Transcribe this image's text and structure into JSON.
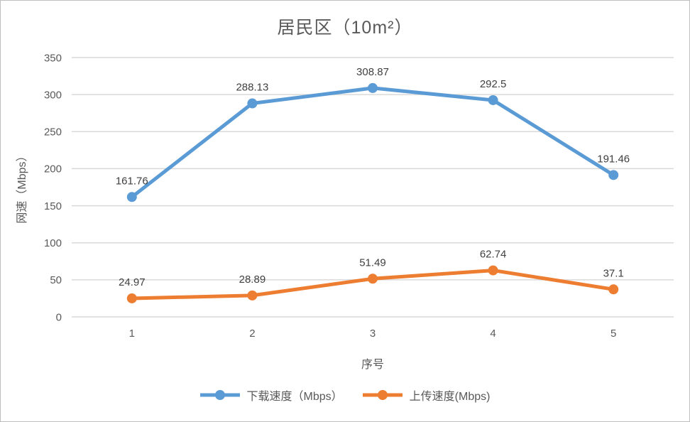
{
  "chart": {
    "title": "居民区（10m²）",
    "colors": {
      "download_series": "#5B9BD5",
      "upload_series": "#ED7D31",
      "gridline": "#D9D9D9",
      "axis_text": "#595959",
      "data_label_text": "#404040",
      "frame_border": "#BFBFBF",
      "background": "#FFFFFF"
    }
  },
  "chart_data": {
    "type": "line",
    "title": "居民区（10m²）",
    "xlabel": "序号",
    "ylabel": "网速（Mbps）",
    "categories": [
      "1",
      "2",
      "3",
      "4",
      "5"
    ],
    "series": [
      {
        "name": "下载速度（Mbps）",
        "values": [
          161.76,
          288.13,
          308.87,
          292.5,
          191.46
        ],
        "labels": [
          "161.76",
          "288.13",
          "308.87",
          "292.5",
          "191.46"
        ],
        "color": "#5B9BD5"
      },
      {
        "name": "上传速度(Mbps)",
        "values": [
          24.97,
          28.89,
          51.49,
          62.74,
          37.1
        ],
        "labels": [
          "24.97",
          "28.89",
          "51.49",
          "62.74",
          "37.1"
        ],
        "color": "#ED7D31"
      }
    ],
    "ylim": [
      0,
      350
    ],
    "yticks": [
      0,
      50,
      100,
      150,
      200,
      250,
      300,
      350
    ],
    "grid": true,
    "markers": true,
    "data_labels": true,
    "legend_position": "bottom"
  }
}
